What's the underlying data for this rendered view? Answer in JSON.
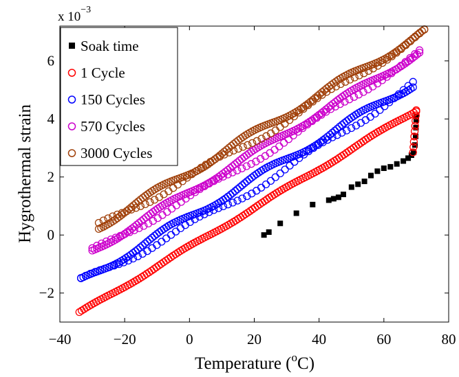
{
  "chart_data": {
    "type": "scatter",
    "xlabel": "Temperature (",
    "xlabel_sup": "o",
    "xlabel_end": "C)",
    "ylabel": "Hygrothermal strain",
    "y_multiplier": "x 10",
    "y_multiplier_exp": "−3",
    "xlim": [
      -40,
      80
    ],
    "ylim": [
      -3,
      7.2
    ],
    "x_ticks": [
      -40,
      -20,
      0,
      20,
      40,
      60,
      80
    ],
    "y_ticks": [
      -2,
      0,
      2,
      4,
      6
    ],
    "x_tick_labels": [
      "−40",
      "−20",
      "0",
      "20",
      "40",
      "60",
      "80"
    ],
    "y_tick_labels": [
      "−2",
      "0",
      "2",
      "4",
      "6"
    ],
    "grid": false,
    "legend_position": "top-left",
    "series": [
      {
        "name": "Soak time",
        "marker": "square",
        "color": "#000000",
        "points": [
          [
            23,
            0.0
          ],
          [
            24.5,
            0.1
          ],
          [
            28,
            0.4
          ],
          [
            33,
            0.75
          ],
          [
            38,
            1.05
          ],
          [
            43,
            1.2
          ],
          [
            44.5,
            1.25
          ],
          [
            46,
            1.3
          ],
          [
            47.5,
            1.4
          ],
          [
            50,
            1.65
          ],
          [
            52,
            1.75
          ],
          [
            54,
            1.85
          ],
          [
            56,
            2.05
          ],
          [
            58,
            2.2
          ],
          [
            60,
            2.3
          ],
          [
            62,
            2.35
          ],
          [
            64,
            2.45
          ],
          [
            66,
            2.55
          ],
          [
            67.5,
            2.65
          ],
          [
            68.5,
            2.75
          ],
          [
            69.2,
            2.85
          ],
          [
            69.6,
            3.1
          ],
          [
            69.8,
            3.4
          ],
          [
            69.9,
            3.7
          ],
          [
            70,
            3.95
          ],
          [
            70,
            4.1
          ]
        ]
      },
      {
        "name": "1 Cycle",
        "marker": "circle",
        "color": "#ff0000",
        "x_range": [
          -34,
          70
        ],
        "y_range": [
          -2.7,
          4.3
        ],
        "wobble": 0.05,
        "return_to": [
          69,
          2.85
        ]
      },
      {
        "name": "150 Cycles",
        "marker": "circle",
        "color": "#0000ff",
        "x_range": [
          -33.5,
          69
        ],
        "y_range": [
          -1.6,
          5.2
        ],
        "wobble": 0.12,
        "band": 0.35
      },
      {
        "name": "570 Cycles",
        "marker": "circle",
        "color": "#cc00cc",
        "x_range": [
          -30,
          71
        ],
        "y_range": [
          -0.55,
          6.3
        ],
        "wobble": 0.1,
        "band": 0.25
      },
      {
        "name": "3000 Cycles",
        "marker": "circle",
        "color": "#a0400a",
        "x_range": [
          -28,
          72.5
        ],
        "y_range": [
          0.3,
          7.0
        ],
        "wobble": 0.12,
        "band": 0.22
      }
    ]
  }
}
